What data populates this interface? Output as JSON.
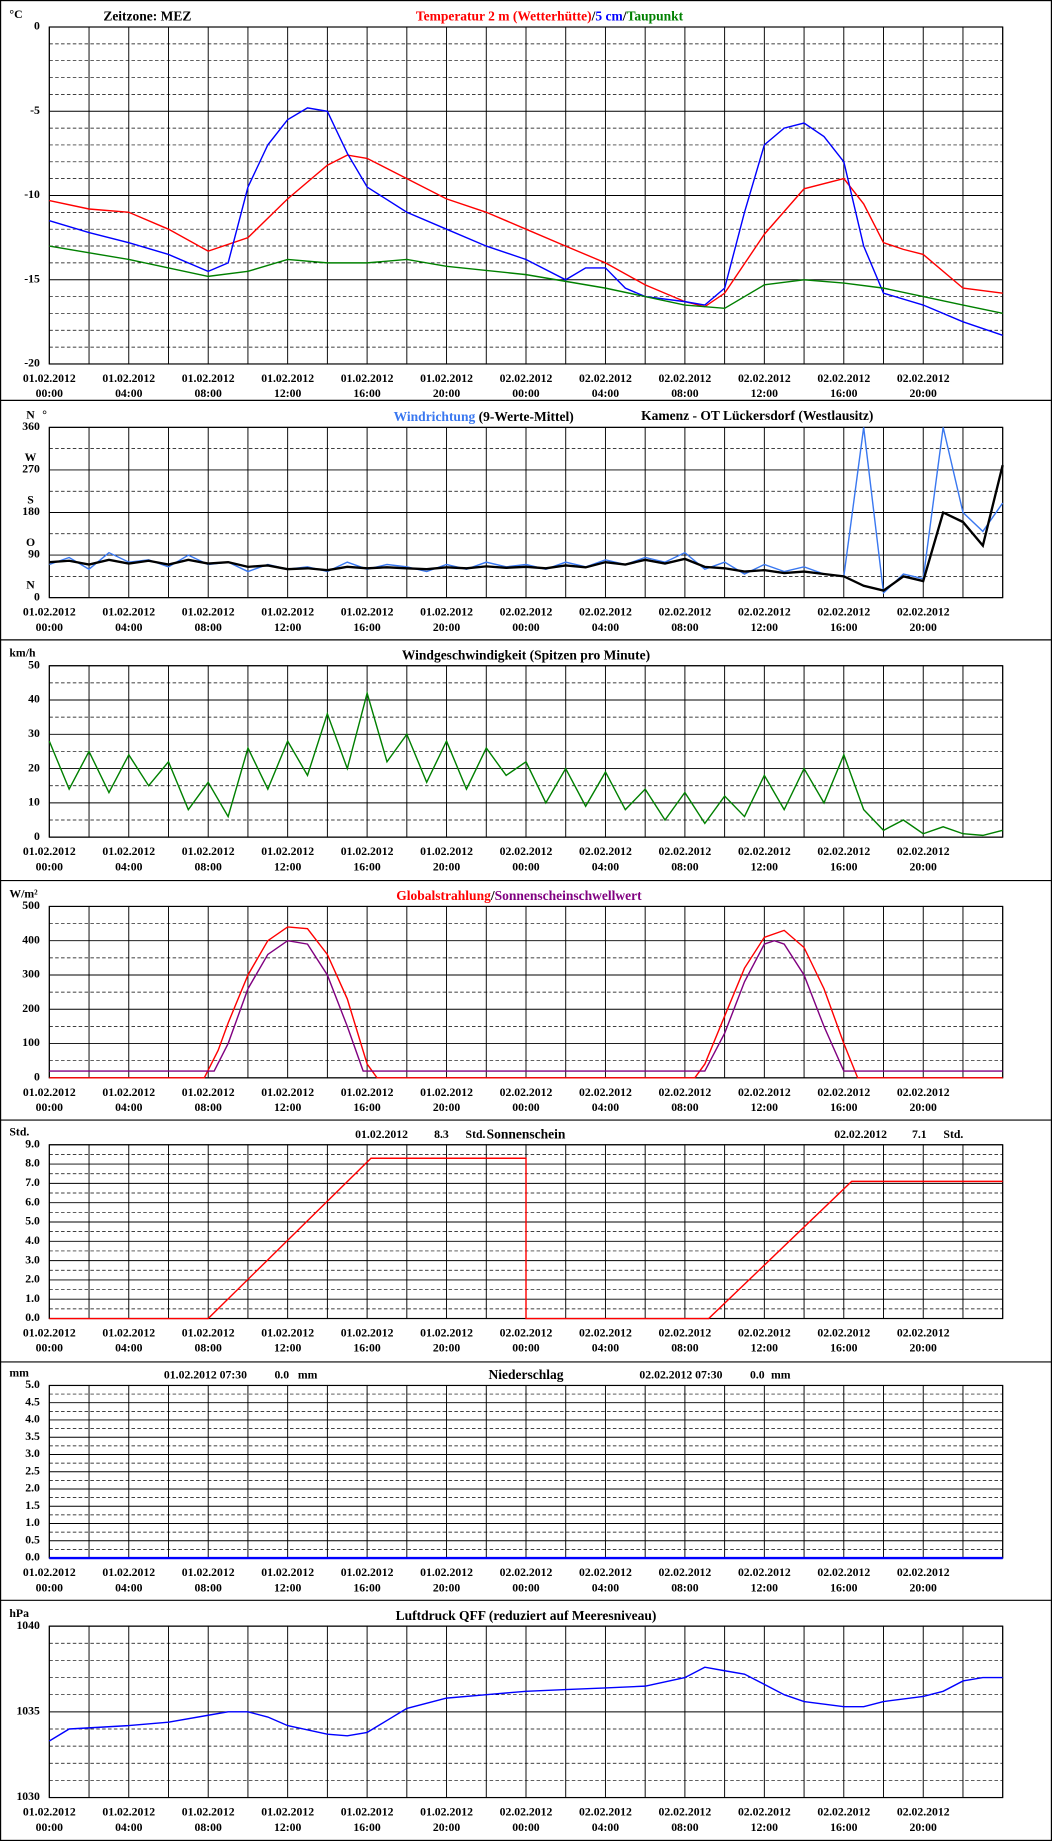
{
  "x_axis": {
    "xlim": [
      0,
      48
    ],
    "xticks": [
      {
        "value": 0,
        "label": "01.02.2012",
        "time": "00:00"
      },
      {
        "value": 4,
        "label": "01.02.2012",
        "time": "04:00"
      },
      {
        "value": 8,
        "label": "01.02.2012",
        "time": "08:00"
      },
      {
        "value": 12,
        "label": "01.02.2012",
        "time": "12:00"
      },
      {
        "value": 16,
        "label": "01.02.2012",
        "time": "16:00"
      },
      {
        "value": 20,
        "label": "01.02.2012",
        "time": "20:00"
      },
      {
        "value": 24,
        "label": "02.02.2012",
        "time": "00:00"
      },
      {
        "value": 28,
        "label": "02.02.2012",
        "time": "04:00"
      },
      {
        "value": 32,
        "label": "02.02.2012",
        "time": "08:00"
      },
      {
        "value": 36,
        "label": "02.02.2012",
        "time": "12:00"
      },
      {
        "value": 40,
        "label": "02.02.2012",
        "time": "16:00"
      },
      {
        "value": 44,
        "label": "02.02.2012",
        "time": "20:00"
      }
    ],
    "xgrid": [
      0,
      2,
      4,
      6,
      8,
      10,
      12,
      14,
      16,
      18,
      20,
      22,
      24,
      26,
      28,
      30,
      32,
      34,
      36,
      38,
      40,
      42,
      44,
      46,
      48
    ]
  },
  "chart_data": [
    {
      "type": "line",
      "unit": "°C",
      "note": "Zeitzone: MEZ",
      "legend_separator": "/",
      "ylim": [
        -20,
        0
      ],
      "yticks": [
        0,
        -5,
        -10,
        -15,
        -20
      ],
      "yminor": [
        -1,
        -2,
        -3,
        -4,
        -6,
        -7,
        -8,
        -9,
        -11,
        -12,
        -13,
        -14,
        -16,
        -17,
        -18,
        -19
      ],
      "series": [
        {
          "name": "Temperatur 2 m (Wetterhütte)",
          "color": "#ff0000",
          "x": [
            0,
            2,
            4,
            6,
            8,
            10,
            12,
            14,
            15,
            16,
            18,
            20,
            22,
            24,
            26,
            28,
            30,
            32,
            33,
            34,
            36,
            38,
            40,
            41,
            42,
            43,
            44,
            46,
            48
          ],
          "values": [
            -10.3,
            -10.8,
            -11.0,
            -12.0,
            -13.3,
            -12.5,
            -10.2,
            -8.2,
            -7.6,
            -7.8,
            -9.0,
            -10.2,
            -11.0,
            -12.0,
            -13.0,
            -14.0,
            -15.3,
            -16.3,
            -16.6,
            -15.8,
            -12.3,
            -9.6,
            -9.0,
            -10.5,
            -12.8,
            -13.2,
            -13.5,
            -15.5,
            -15.8
          ]
        },
        {
          "name": "5 cm",
          "color": "#0000ff",
          "x": [
            0,
            2,
            4,
            6,
            8,
            9,
            10,
            11,
            12,
            13,
            14,
            15,
            16,
            18,
            20,
            22,
            24,
            26,
            27,
            28,
            29,
            30,
            32,
            33,
            34,
            35,
            36,
            37,
            38,
            39,
            40,
            41,
            42,
            44,
            46,
            48
          ],
          "values": [
            -11.5,
            -12.2,
            -12.8,
            -13.5,
            -14.5,
            -14.0,
            -9.5,
            -7.0,
            -5.5,
            -4.8,
            -5.0,
            -7.5,
            -9.5,
            -11.0,
            -12.0,
            -13.0,
            -13.8,
            -15.0,
            -14.3,
            -14.3,
            -15.5,
            -16.0,
            -16.3,
            -16.5,
            -15.5,
            -11.0,
            -7.0,
            -6.0,
            -5.7,
            -6.5,
            -8.0,
            -13.0,
            -15.8,
            -16.5,
            -17.5,
            -18.3
          ]
        },
        {
          "name": "Taupunkt",
          "color": "#008000",
          "x": [
            0,
            4,
            8,
            10,
            12,
            14,
            16,
            18,
            20,
            24,
            28,
            32,
            34,
            36,
            38,
            40,
            42,
            44,
            46,
            48
          ],
          "values": [
            -13.0,
            -13.8,
            -14.8,
            -14.5,
            -13.8,
            -14.0,
            -14.0,
            -13.8,
            -14.2,
            -14.7,
            -15.5,
            -16.5,
            -16.7,
            -15.3,
            -15.0,
            -15.2,
            -15.5,
            -16.0,
            -16.5,
            -17.0
          ]
        }
      ]
    },
    {
      "type": "line",
      "unit": "°",
      "station": "Kamenz - OT Lückersdorf (Westlausitz)",
      "ylim": [
        0,
        360
      ],
      "yticks": [
        0,
        90,
        180,
        270,
        360
      ],
      "yminor": [
        45,
        135,
        225,
        315
      ],
      "compass": [
        {
          "value": 0,
          "label": "N"
        },
        {
          "value": 90,
          "label": "O"
        },
        {
          "value": 180,
          "label": "S"
        },
        {
          "value": 270,
          "label": "W"
        },
        {
          "value": 360,
          "label": "N"
        }
      ],
      "series": [
        {
          "name": "Windrichtung",
          "color": "#3a78f0",
          "x": [
            0,
            1,
            2,
            3,
            4,
            5,
            6,
            7,
            8,
            9,
            10,
            11,
            12,
            13,
            14,
            15,
            16,
            17,
            18,
            19,
            20,
            21,
            22,
            23,
            24,
            25,
            26,
            27,
            28,
            29,
            30,
            31,
            32,
            33,
            34,
            35,
            36,
            37,
            38,
            39,
            40,
            41,
            42,
            43,
            44,
            45,
            46,
            47,
            48
          ],
          "values": [
            70,
            85,
            60,
            95,
            75,
            80,
            65,
            90,
            70,
            75,
            55,
            70,
            60,
            65,
            55,
            75,
            60,
            70,
            65,
            55,
            70,
            60,
            75,
            65,
            70,
            60,
            75,
            65,
            80,
            70,
            85,
            75,
            95,
            60,
            75,
            50,
            70,
            55,
            65,
            50,
            45,
            360,
            10,
            50,
            40,
            360,
            180,
            140,
            200
          ]
        },
        {
          "name": "(9-Werte-Mittel)",
          "color": "#000000",
          "x": [
            0,
            1,
            2,
            3,
            4,
            5,
            6,
            7,
            8,
            9,
            10,
            11,
            12,
            13,
            14,
            15,
            16,
            17,
            18,
            19,
            20,
            21,
            22,
            23,
            24,
            25,
            26,
            27,
            28,
            29,
            30,
            31,
            32,
            33,
            34,
            35,
            36,
            37,
            38,
            39,
            40,
            41,
            42,
            43,
            44,
            45,
            46,
            47,
            48
          ],
          "values": [
            75,
            78,
            70,
            80,
            72,
            78,
            70,
            80,
            72,
            75,
            65,
            68,
            60,
            62,
            58,
            65,
            62,
            64,
            62,
            60,
            64,
            62,
            66,
            63,
            65,
            62,
            68,
            64,
            75,
            70,
            80,
            72,
            82,
            65,
            62,
            55,
            58,
            52,
            55,
            50,
            45,
            25,
            15,
            45,
            35,
            180,
            160,
            110,
            280
          ]
        }
      ]
    },
    {
      "type": "line",
      "unit": "km/h",
      "title": "Windgeschwindigkeit (Spitzen pro Minute)",
      "ylim": [
        0,
        50
      ],
      "yticks": [
        0,
        10,
        20,
        30,
        40,
        50
      ],
      "yminor": [
        5,
        15,
        25,
        35,
        45
      ],
      "series": [
        {
          "color": "#008000",
          "x": [
            0,
            1,
            2,
            3,
            4,
            5,
            6,
            7,
            8,
            9,
            10,
            11,
            12,
            13,
            14,
            15,
            16,
            17,
            18,
            19,
            20,
            21,
            22,
            23,
            24,
            25,
            26,
            27,
            28,
            29,
            30,
            31,
            32,
            33,
            34,
            35,
            36,
            37,
            38,
            39,
            40,
            41,
            42,
            43,
            44,
            45,
            46,
            47,
            48
          ],
          "values": [
            28,
            14,
            25,
            13,
            24,
            15,
            22,
            8,
            16,
            6,
            26,
            14,
            28,
            18,
            36,
            20,
            42,
            22,
            30,
            16,
            28,
            14,
            26,
            18,
            22,
            10,
            20,
            9,
            19,
            8,
            14,
            5,
            13,
            4,
            12,
            6,
            18,
            8,
            20,
            10,
            24,
            8,
            2,
            5,
            1,
            3,
            1,
            0.5,
            2
          ]
        }
      ]
    },
    {
      "type": "line",
      "unit": "W/m²",
      "legend_separator": "/",
      "ylim": [
        0,
        500
      ],
      "yticks": [
        0,
        100,
        200,
        300,
        400,
        500
      ],
      "yminor": [
        50,
        150,
        250,
        350,
        450
      ],
      "series": [
        {
          "name": "Globalstrahlung",
          "color": "#ff0000",
          "x": [
            0,
            7.8,
            8.5,
            9,
            10,
            11,
            12,
            13,
            14,
            15,
            16,
            16.5,
            32.5,
            33,
            34,
            35,
            36,
            37,
            38,
            39,
            40,
            40.7,
            48
          ],
          "values": [
            0,
            0,
            80,
            160,
            300,
            400,
            440,
            435,
            360,
            230,
            40,
            0,
            0,
            40,
            180,
            320,
            410,
            430,
            380,
            260,
            100,
            0,
            0
          ]
        },
        {
          "name": "Sonnenscheinschwellwert",
          "color": "#800080",
          "x": [
            0,
            8.3,
            9,
            10,
            11,
            12,
            13,
            14,
            15,
            15.8,
            33,
            34,
            35,
            36,
            36.5,
            37,
            38,
            39,
            40,
            48
          ],
          "values": [
            20,
            20,
            100,
            260,
            360,
            400,
            390,
            300,
            150,
            20,
            20,
            130,
            280,
            390,
            400,
            390,
            300,
            150,
            20,
            20
          ]
        }
      ]
    },
    {
      "type": "line",
      "unit": "Std.",
      "title": "Sonnenschein",
      "ylim": [
        0,
        9
      ],
      "yticks": [
        {
          "value": 0,
          "label": "0.0"
        },
        {
          "value": 1,
          "label": "1.0"
        },
        {
          "value": 2,
          "label": "2.0"
        },
        {
          "value": 3,
          "label": "3.0"
        },
        {
          "value": 4,
          "label": "4.0"
        },
        {
          "value": 5,
          "label": "5.0"
        },
        {
          "value": 6,
          "label": "6.0"
        },
        {
          "value": 7,
          "label": "7.0"
        },
        {
          "value": 8,
          "label": "8.0"
        },
        {
          "value": 9,
          "label": "9.0"
        }
      ],
      "yminor": [
        0.5,
        1.5,
        2.5,
        3.5,
        4.5,
        5.5,
        6.5,
        7.5,
        8.5
      ],
      "totals": [
        {
          "date": "01.02.2012",
          "value": 8.3,
          "unit": "Std."
        },
        {
          "date": "02.02.2012",
          "value": 7.1,
          "unit": "Std."
        }
      ],
      "series": [
        {
          "color": "#ff0000",
          "x": [
            0,
            8,
            16.2,
            24,
            24,
            33.2,
            40.4,
            48
          ],
          "values": [
            0,
            0,
            8.3,
            8.3,
            0,
            0,
            7.1,
            7.1
          ]
        }
      ]
    },
    {
      "type": "line",
      "unit": "mm",
      "title": "Niederschlag",
      "ylim": [
        0,
        5
      ],
      "yticks": [
        {
          "value": 0,
          "label": "0.0"
        },
        {
          "value": 0.5,
          "label": "0.5"
        },
        {
          "value": 1,
          "label": "1.0"
        },
        {
          "value": 1.5,
          "label": "1.5"
        },
        {
          "value": 2,
          "label": "2.0"
        },
        {
          "value": 2.5,
          "label": "2.5"
        },
        {
          "value": 3,
          "label": "3.0"
        },
        {
          "value": 3.5,
          "label": "3.5"
        },
        {
          "value": 4,
          "label": "4.0"
        },
        {
          "value": 4.5,
          "label": "4.5"
        },
        {
          "value": 5,
          "label": "5.0"
        }
      ],
      "yminor": [
        0.25,
        0.75,
        1.25,
        1.75,
        2.25,
        2.75,
        3.25,
        3.75,
        4.25,
        4.75
      ],
      "totals": [
        {
          "date": "01.02.2012 07:30",
          "value": 0,
          "value_label": "0.0",
          "unit": "mm"
        },
        {
          "date": "02.02.2012 07:30",
          "value": 0,
          "value_label": "0.0",
          "unit": "mm"
        }
      ],
      "series": [
        {
          "color": "#0000ff",
          "x": [
            0,
            48
          ],
          "values": [
            0,
            0
          ]
        }
      ]
    },
    {
      "type": "line",
      "unit": "hPa",
      "title": "Luftdruck QFF (reduziert auf Meeresniveau)",
      "ylim": [
        1030,
        1040
      ],
      "yticks": [
        1030,
        1035,
        1040
      ],
      "yminor": [
        1031,
        1032,
        1033,
        1034,
        1036,
        1037,
        1038,
        1039
      ],
      "series": [
        {
          "color": "#0000ff",
          "x": [
            0,
            1,
            4,
            6,
            8,
            9,
            10,
            11,
            12,
            14,
            15,
            16,
            17,
            18,
            20,
            22,
            24,
            26,
            28,
            30,
            32,
            33,
            34,
            35,
            36,
            37,
            38,
            40,
            41,
            42,
            44,
            45,
            46,
            47,
            48
          ],
          "values": [
            1033.3,
            1034.0,
            1034.2,
            1034.4,
            1034.8,
            1035.0,
            1035.0,
            1034.7,
            1034.2,
            1033.7,
            1033.6,
            1033.8,
            1034.5,
            1035.2,
            1035.8,
            1036.0,
            1036.2,
            1036.3,
            1036.4,
            1036.5,
            1037.0,
            1037.6,
            1037.4,
            1037.2,
            1036.6,
            1036.0,
            1035.6,
            1035.3,
            1035.3,
            1035.6,
            1035.9,
            1036.2,
            1036.8,
            1037.0,
            1037.0
          ]
        }
      ]
    }
  ]
}
